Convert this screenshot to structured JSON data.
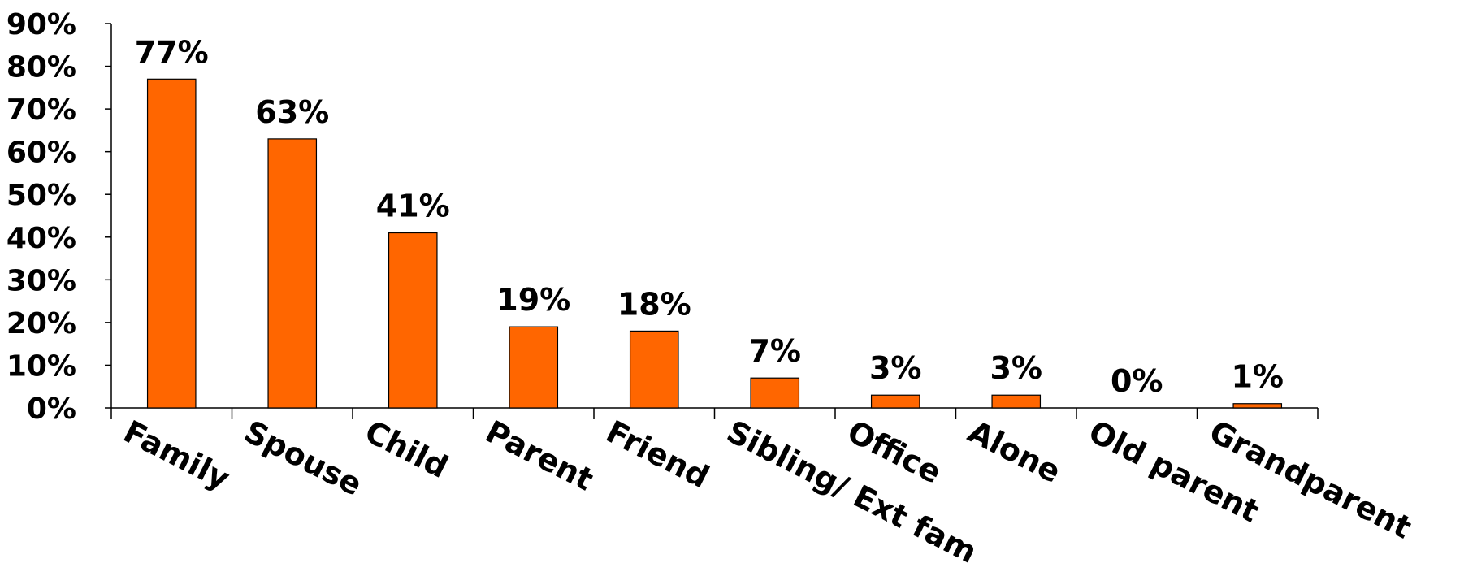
{
  "chart_data": {
    "type": "bar",
    "categories": [
      "Family",
      "Spouse",
      "Child",
      "Parent",
      "Friend",
      "Sibling/ Ext fam",
      "Office",
      "Alone",
      "Old parent",
      "Grandparent"
    ],
    "values": [
      77,
      63,
      41,
      19,
      18,
      7,
      3,
      3,
      0,
      1
    ],
    "data_labels": [
      "77%",
      "63%",
      "41%",
      "19%",
      "18%",
      "7%",
      "3%",
      "3%",
      "0%",
      "1%"
    ],
    "y_ticks": [
      "0%",
      "10%",
      "20%",
      "30%",
      "40%",
      "50%",
      "60%",
      "70%",
      "80%",
      "90%"
    ],
    "ylim": [
      0,
      90
    ],
    "grid": false,
    "legend": "none",
    "bar_color": "#FF6600",
    "title": "",
    "xlabel": "",
    "ylabel": ""
  }
}
